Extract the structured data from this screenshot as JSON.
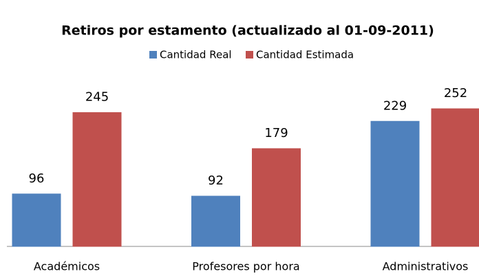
{
  "chart_data": {
    "type": "bar",
    "title": "Retiros por estamento (actualizado al 01-09-2011)",
    "categories": [
      "Académicos",
      "Profesores por hora",
      "Administrativos"
    ],
    "series": [
      {
        "name": "Cantidad Real",
        "color": "#4f81bd",
        "values": [
          96,
          92,
          229
        ]
      },
      {
        "name": "Cantidad Estimada",
        "color": "#c0504d",
        "values": [
          245,
          179,
          252
        ]
      }
    ]
  }
}
